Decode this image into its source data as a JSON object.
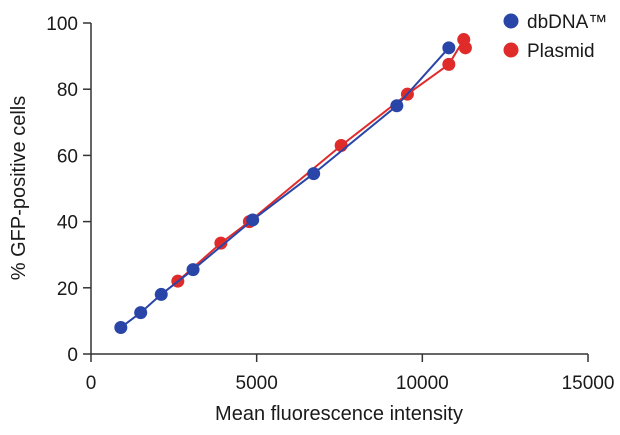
{
  "chart_data": {
    "type": "scatter",
    "title": "",
    "xlabel": "Mean fluorescence intensity",
    "ylabel": "% GFP-positive cells",
    "xlim": [
      0,
      15000
    ],
    "ylim": [
      0,
      100
    ],
    "xticks": [
      0,
      5000,
      10000,
      15000
    ],
    "yticks": [
      0,
      20,
      40,
      60,
      80,
      100
    ],
    "grid": false,
    "legend_position": "top-right",
    "series": [
      {
        "name": "Plasmid",
        "color": "#e02b2b",
        "points": [
          {
            "x": 2620,
            "y": 22
          },
          {
            "x": 3920,
            "y": 33.5
          },
          {
            "x": 4780,
            "y": 40
          },
          {
            "x": 7550,
            "y": 63
          },
          {
            "x": 9550,
            "y": 78.5
          },
          {
            "x": 10800,
            "y": 87.5
          },
          {
            "x": 11250,
            "y": 95
          },
          {
            "x": 11300,
            "y": 92.5
          }
        ]
      },
      {
        "name": "dbDNA™",
        "color": "#2a45a8",
        "points": [
          {
            "x": 900,
            "y": 8
          },
          {
            "x": 1500,
            "y": 12.5
          },
          {
            "x": 2120,
            "y": 18
          },
          {
            "x": 3080,
            "y": 25.5
          },
          {
            "x": 4880,
            "y": 40.5
          },
          {
            "x": 6720,
            "y": 54.5
          },
          {
            "x": 9230,
            "y": 75
          },
          {
            "x": 10800,
            "y": 92.5
          }
        ]
      }
    ],
    "legend": [
      {
        "name": "dbDNA™",
        "color": "#2a45a8"
      },
      {
        "name": "Plasmid",
        "color": "#e02b2b"
      }
    ]
  }
}
